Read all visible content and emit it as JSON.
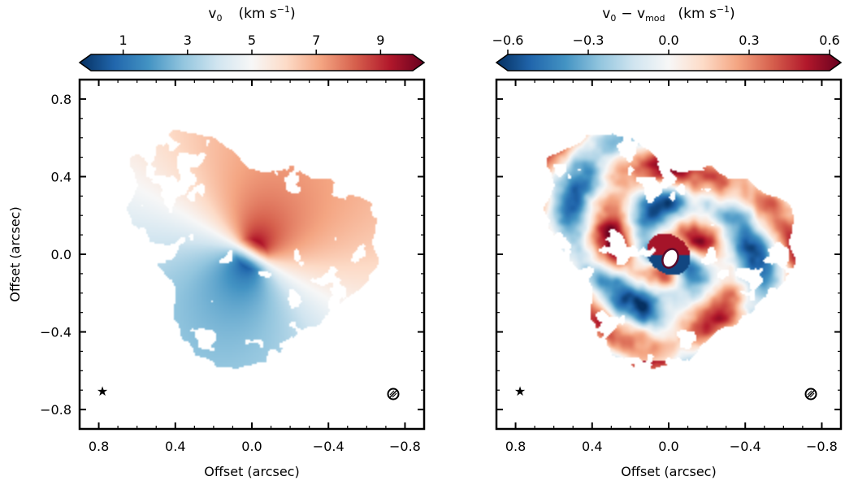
{
  "chart_data": [
    {
      "type": "heatmap",
      "colorbar_title": "v",
      "colorbar_title_sub": "0",
      "colorbar_title_units": "(km s",
      "colorbar_title_exp": "−1",
      "colorbar_title_close": ")",
      "colorbar_ticks": [
        "1",
        "3",
        "5",
        "7",
        "9"
      ],
      "colorbar_tick_values": [
        1,
        3,
        5,
        7,
        9
      ],
      "colorbar_range": [
        0,
        10
      ],
      "colormap": "RdBu_r",
      "xlabel": "Offset (arcsec)",
      "ylabel": "Offset (arcsec)",
      "x_ticks": [
        "0.8",
        "0.4",
        "0.0",
        "−0.4",
        "−0.8"
      ],
      "x_tick_values": [
        0.8,
        0.4,
        0.0,
        -0.4,
        -0.8
      ],
      "y_ticks": [
        "0.8",
        "0.4",
        "0.0",
        "−0.4",
        "−0.8"
      ],
      "y_tick_values": [
        0.8,
        0.4,
        0.0,
        -0.4,
        -0.8
      ],
      "xlim": [
        0.9,
        -0.9
      ],
      "ylim": [
        -0.9,
        0.9
      ],
      "markers": [
        {
          "name": "star",
          "x": 0.78,
          "y": -0.7
        },
        {
          "name": "beam",
          "x": -0.7,
          "y": -0.71
        }
      ],
      "field": {
        "kind": "keplerian_velocity",
        "center_value": 5,
        "pa_redshift_deg": 30,
        "max_value": 10
      }
    },
    {
      "type": "heatmap",
      "colorbar_title": "v",
      "colorbar_title_sub": "0",
      "colorbar_title_mid": "− v",
      "colorbar_title_sub2": "mod",
      "colorbar_title_units": "(km s",
      "colorbar_title_exp": "−1",
      "colorbar_title_close": ")",
      "colorbar_ticks": [
        "−0.6",
        "−0.3",
        "0.0",
        "0.3",
        "0.6"
      ],
      "colorbar_tick_values": [
        -0.6,
        -0.3,
        0.0,
        0.3,
        0.6
      ],
      "colorbar_range": [
        -0.6,
        0.6
      ],
      "colormap": "RdBu_r",
      "xlabel": "Offset (arcsec)",
      "x_ticks": [
        "0.8",
        "0.4",
        "0.0",
        "−0.4",
        "−0.8"
      ],
      "x_tick_values": [
        0.8,
        0.4,
        0.0,
        -0.4,
        -0.8
      ],
      "xlim": [
        0.9,
        -0.9
      ],
      "ylim": [
        -0.9,
        0.9
      ],
      "markers": [
        {
          "name": "star",
          "x": 0.78,
          "y": -0.7
        },
        {
          "name": "beam",
          "x": -0.7,
          "y": -0.71
        },
        {
          "name": "center-mask",
          "x": 0.0,
          "y": 0.0
        }
      ],
      "field": {
        "kind": "spiral_residual",
        "amplitude": 0.6
      }
    }
  ]
}
